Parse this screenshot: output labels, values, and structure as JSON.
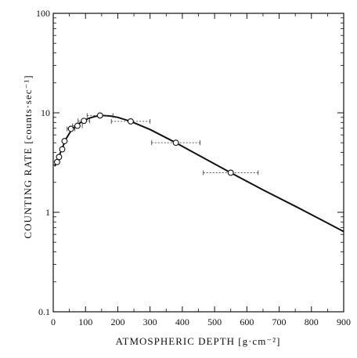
{
  "chart_data": {
    "type": "scatter",
    "xlabel": "ATMOSPHERIC DEPTH [g·cm⁻²]",
    "ylabel": "COUNTING RATE [counts·sec⁻¹]",
    "xlim": [
      0,
      900
    ],
    "ylim": [
      0.1,
      100
    ],
    "y_scale": "log",
    "grid": false,
    "x_ticks": [
      "0",
      "100",
      "200",
      "300",
      "400",
      "500",
      "600",
      "700",
      "800",
      "900"
    ],
    "y_ticks": [
      "0.1",
      "1",
      "10",
      "100"
    ],
    "points": [
      {
        "x": 12,
        "y": 3.2,
        "xerr": 0
      },
      {
        "x": 18,
        "y": 3.6,
        "xerr": 0
      },
      {
        "x": 28,
        "y": 4.3,
        "xerr": 0
      },
      {
        "x": 35,
        "y": 5.2,
        "xerr": 0
      },
      {
        "x": 55,
        "y": 6.9,
        "xerr": 12
      },
      {
        "x": 75,
        "y": 7.4,
        "xerr": 15
      },
      {
        "x": 95,
        "y": 8.3,
        "xerr": 18
      },
      {
        "x": 145,
        "y": 9.4,
        "xerr": 40
      },
      {
        "x": 240,
        "y": 8.2,
        "xerr": 60
      },
      {
        "x": 380,
        "y": 5.0,
        "xerr": 75
      },
      {
        "x": 550,
        "y": 2.5,
        "xerr": 85
      }
    ],
    "fit_curve": [
      [
        5,
        2.9
      ],
      [
        10,
        3.2
      ],
      [
        20,
        3.8
      ],
      [
        30,
        4.6
      ],
      [
        40,
        5.5
      ],
      [
        55,
        6.6
      ],
      [
        70,
        7.4
      ],
      [
        90,
        8.2
      ],
      [
        110,
        8.8
      ],
      [
        130,
        9.2
      ],
      [
        150,
        9.4
      ],
      [
        175,
        9.3
      ],
      [
        200,
        9.0
      ],
      [
        240,
        8.2
      ],
      [
        300,
        6.8
      ],
      [
        380,
        5.0
      ],
      [
        460,
        3.6
      ],
      [
        550,
        2.5
      ],
      [
        650,
        1.68
      ],
      [
        750,
        1.15
      ],
      [
        850,
        0.78
      ],
      [
        900,
        0.64
      ]
    ]
  }
}
